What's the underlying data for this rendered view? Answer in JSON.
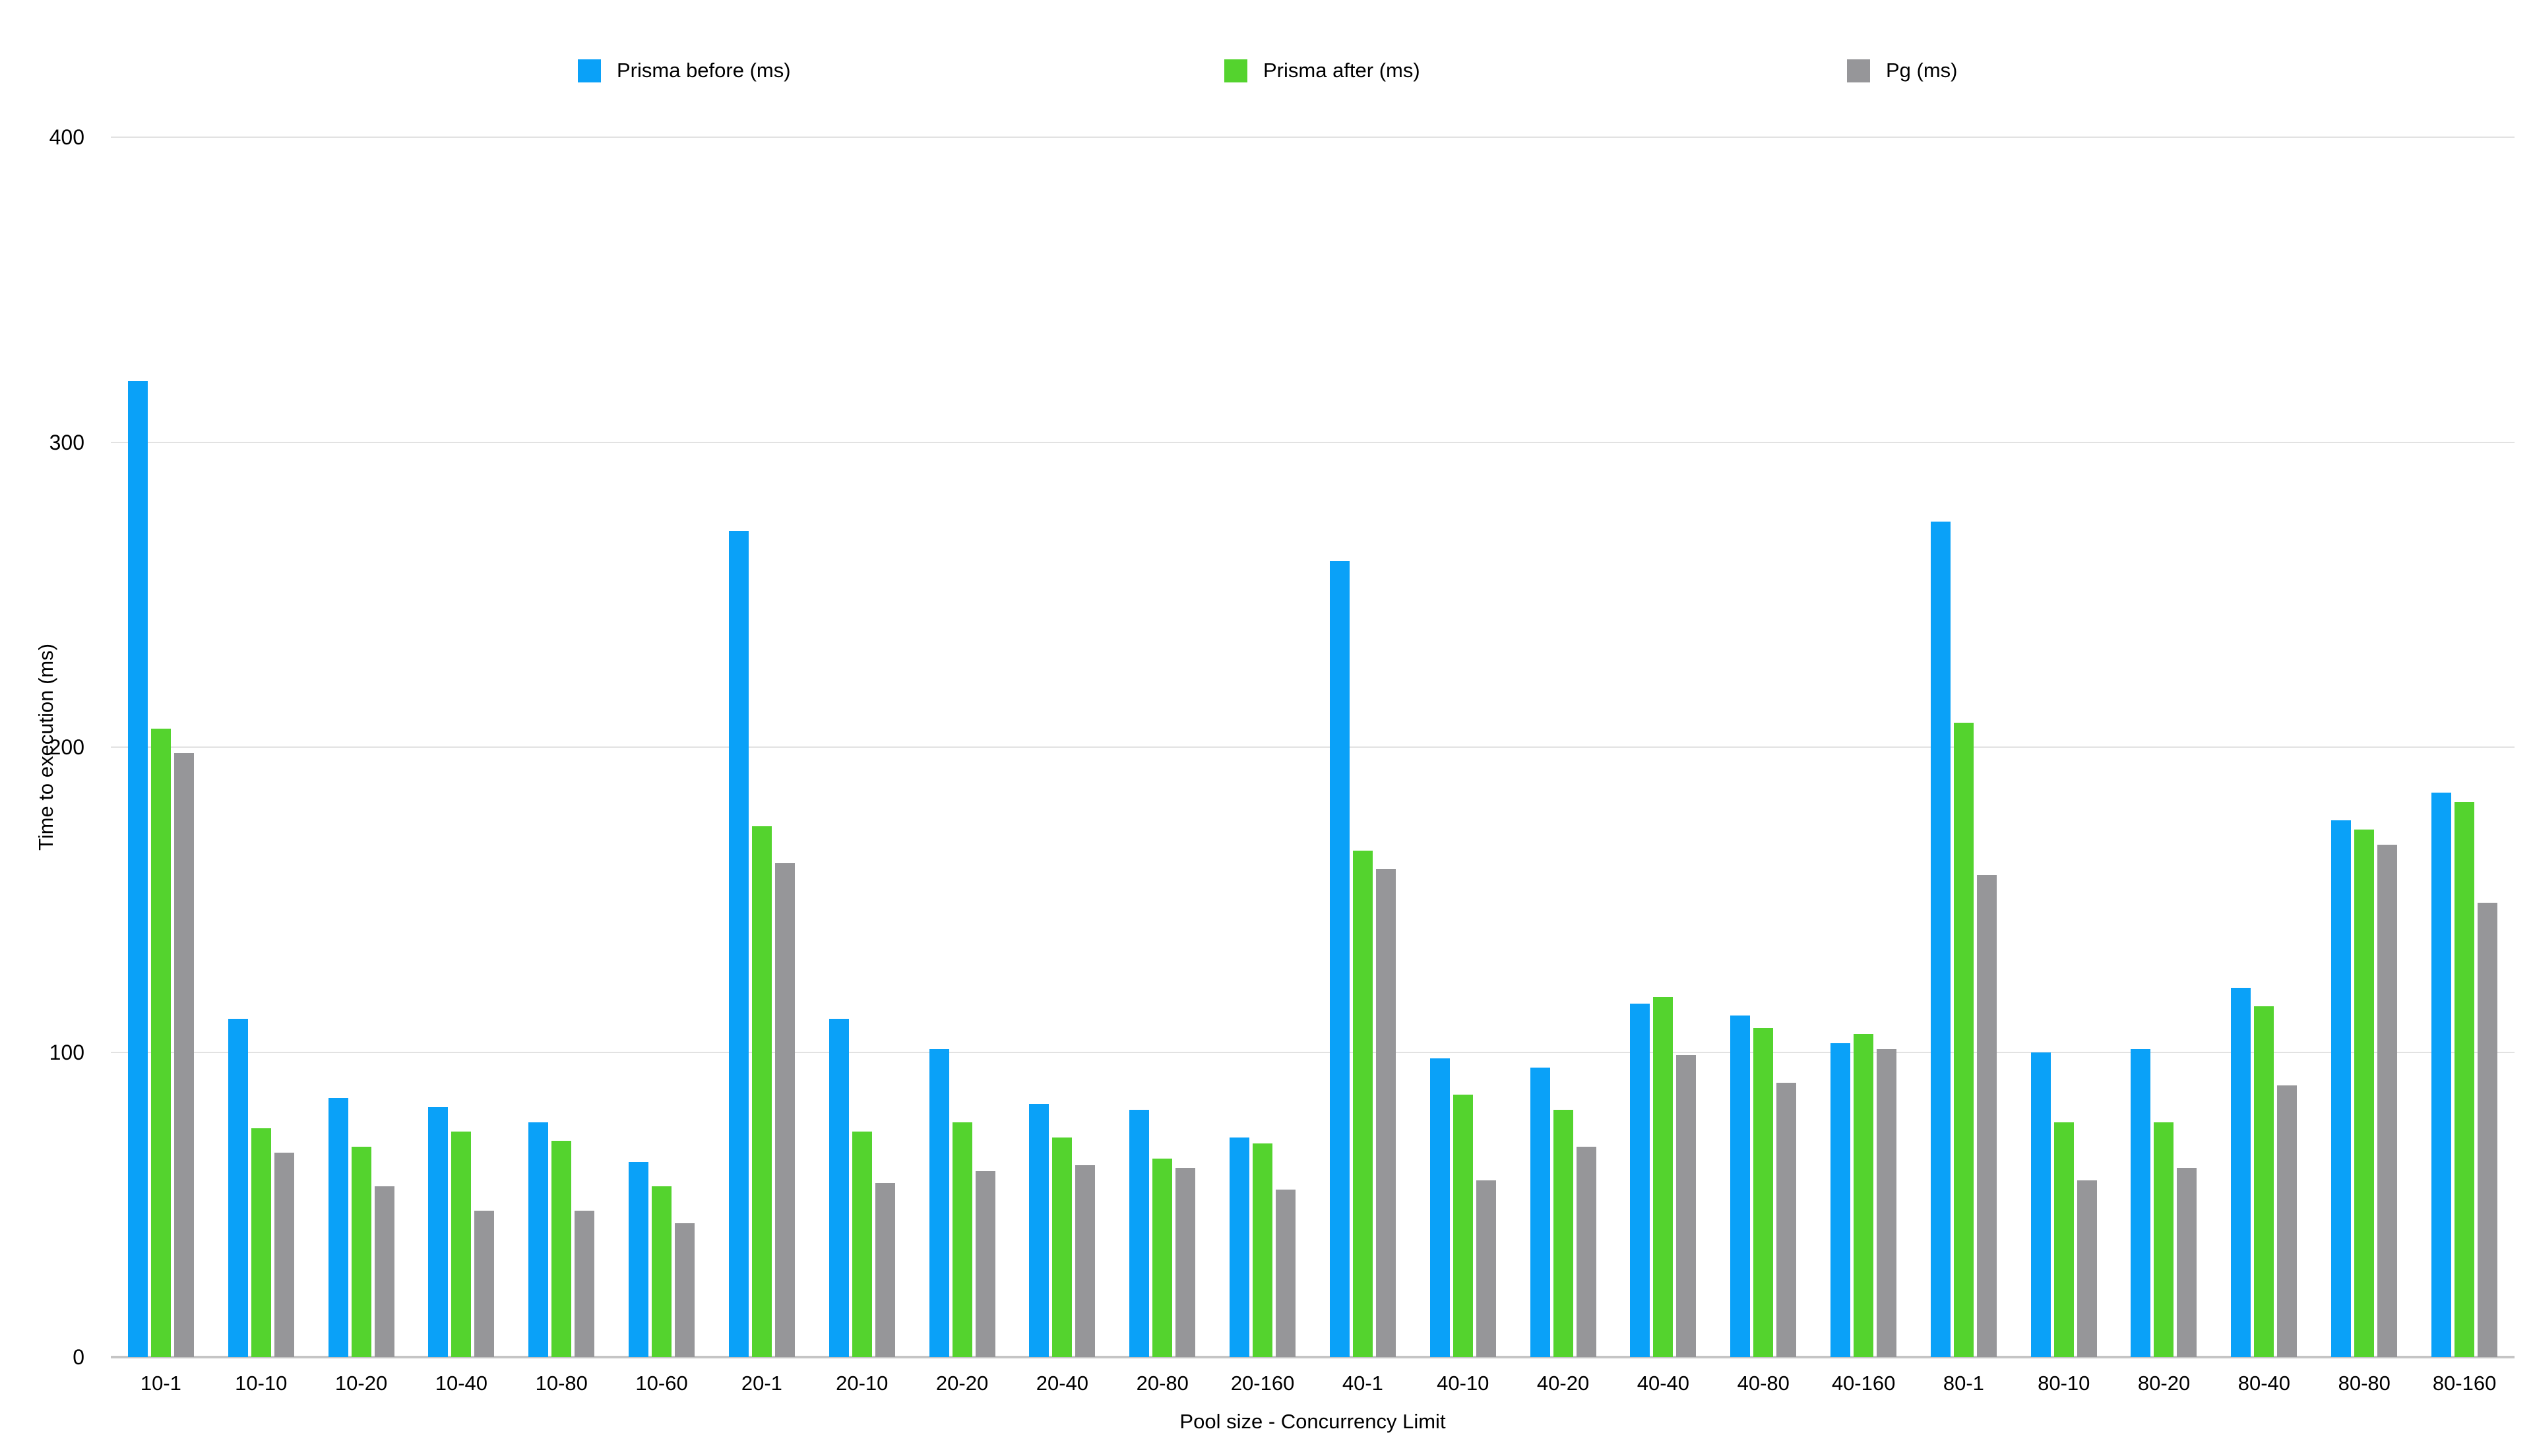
{
  "legend": {
    "items": [
      {
        "label": "Prisma before (ms)"
      },
      {
        "label": "Prisma after (ms)"
      },
      {
        "label": "Pg (ms)"
      }
    ]
  },
  "chart_data": {
    "type": "bar",
    "title": "",
    "xlabel": "Pool size - Concurrency Limit",
    "ylabel": "Time to execution (ms)",
    "ylim": [
      0,
      400
    ],
    "yticks": [
      0,
      100,
      200,
      300,
      400
    ],
    "grid": true,
    "legend_position": "top",
    "categories": [
      "10-1",
      "10-10",
      "10-20",
      "10-40",
      "10-80",
      "10-60",
      "20-1",
      "20-10",
      "20-20",
      "20-40",
      "20-80",
      "20-160",
      "40-1",
      "40-10",
      "40-20",
      "40-40",
      "40-80",
      "40-160",
      "80-1",
      "80-10",
      "80-20",
      "80-40",
      "80-80",
      "80-160"
    ],
    "series": [
      {
        "name": "Prisma before (ms)",
        "color": "#0AA1F8",
        "values": [
          320,
          111,
          85,
          82,
          77,
          64,
          271,
          111,
          101,
          83,
          81,
          72,
          261,
          98,
          95,
          116,
          112,
          103,
          274,
          100,
          101,
          121,
          176,
          185
        ]
      },
      {
        "name": "Prisma after (ms)",
        "color": "#54D32E",
        "values": [
          206,
          75,
          69,
          74,
          71,
          56,
          174,
          74,
          77,
          72,
          65,
          70,
          166,
          86,
          81,
          118,
          108,
          106,
          208,
          77,
          77,
          115,
          173,
          182
        ]
      },
      {
        "name": "Pg (ms)",
        "color": "#969699",
        "values": [
          198,
          67,
          56,
          48,
          48,
          44,
          162,
          57,
          61,
          63,
          62,
          55,
          160,
          58,
          69,
          99,
          90,
          101,
          158,
          58,
          62,
          89,
          168,
          149
        ]
      }
    ]
  },
  "colors": {
    "background": "#FFFFFF",
    "gridline": "#E2E2E2",
    "axis_line": "#C5C5C5",
    "text": "#000000"
  }
}
